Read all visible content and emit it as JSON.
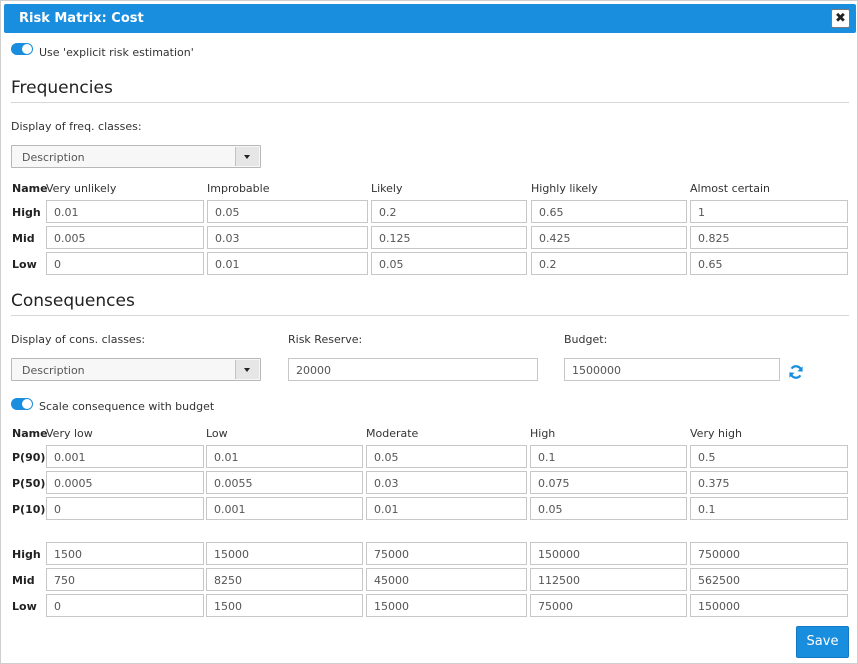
{
  "dialog": {
    "title": "Risk Matrix: Cost",
    "close_label": "✖"
  },
  "explicit_toggle": {
    "label": "Use 'explicit risk estimation'",
    "on": true
  },
  "frequencies": {
    "heading": "Frequencies",
    "display_label": "Display of freq. classes:",
    "display_value": "Description",
    "name_header": "Name",
    "columns": [
      "Very unlikely",
      "Improbable",
      "Likely",
      "Highly likely",
      "Almost certain"
    ],
    "rows": [
      {
        "label": "High",
        "values": [
          "0.01",
          "0.05",
          "0.2",
          "0.65",
          "1"
        ]
      },
      {
        "label": "Mid",
        "values": [
          "0.005",
          "0.03",
          "0.125",
          "0.425",
          "0.825"
        ]
      },
      {
        "label": "Low",
        "values": [
          "0",
          "0.01",
          "0.05",
          "0.2",
          "0.65"
        ]
      }
    ]
  },
  "consequences": {
    "heading": "Consequences",
    "display_label": "Display of cons. classes:",
    "display_value": "Description",
    "risk_reserve_label": "Risk Reserve:",
    "risk_reserve_value": "20000",
    "budget_label": "Budget:",
    "budget_value": "1500000",
    "scale_toggle": {
      "label": "Scale consequence with budget",
      "on": true
    },
    "name_header": "Name",
    "columns": [
      "Very low",
      "Low",
      "Moderate",
      "High",
      "Very high"
    ],
    "prob_rows": [
      {
        "label": "P(90)",
        "values": [
          "0.001",
          "0.01",
          "0.05",
          "0.1",
          "0.5"
        ]
      },
      {
        "label": "P(50)",
        "values": [
          "0.0005",
          "0.0055",
          "0.03",
          "0.075",
          "0.375"
        ]
      },
      {
        "label": "P(10)",
        "values": [
          "0",
          "0.001",
          "0.01",
          "0.05",
          "0.1"
        ]
      }
    ],
    "abs_rows": [
      {
        "label": "High",
        "values": [
          "1500",
          "15000",
          "75000",
          "150000",
          "750000"
        ]
      },
      {
        "label": "Mid",
        "values": [
          "750",
          "8250",
          "45000",
          "112500",
          "562500"
        ]
      },
      {
        "label": "Low",
        "values": [
          "0",
          "1500",
          "15000",
          "75000",
          "150000"
        ]
      }
    ]
  },
  "footer": {
    "save_label": "Save"
  },
  "colors": {
    "accent": "#1a8ede"
  },
  "icons": {
    "close": "close-icon",
    "refresh": "refresh-icon",
    "dropdown": "chevron-down-icon"
  }
}
